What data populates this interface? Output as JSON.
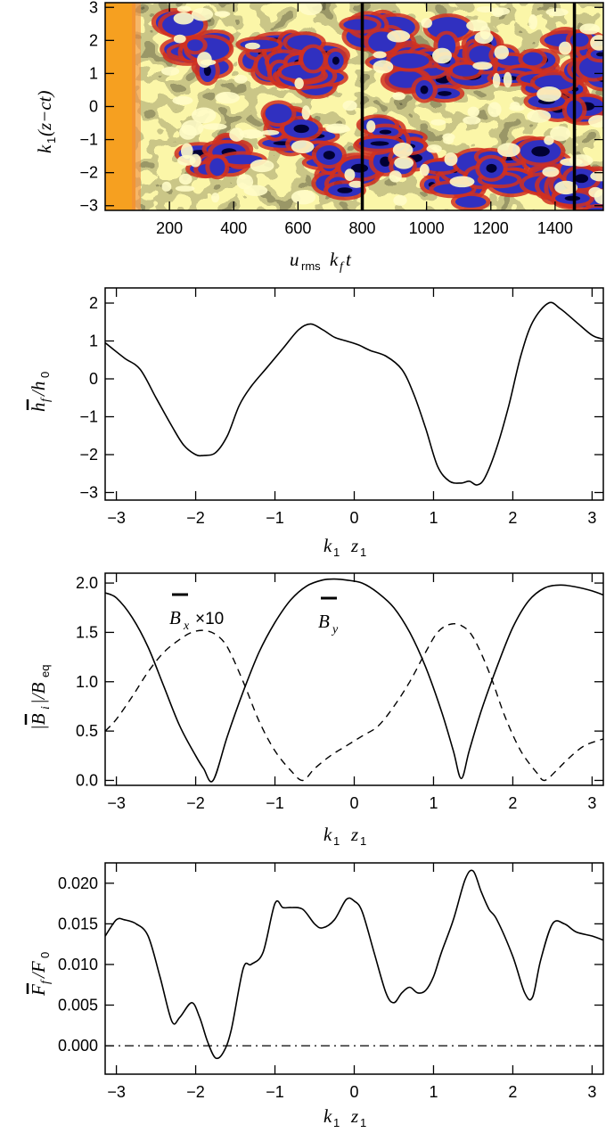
{
  "chart_data": [
    {
      "type": "heatmap",
      "xlabel": "u_rms k_f t",
      "ylabel": "k_1(z - ct)",
      "xlim": [
        0,
        1550
      ],
      "ylim": [
        -3.14159,
        3.14159
      ],
      "x_ticks": [
        200,
        400,
        600,
        800,
        1000,
        1200,
        1400
      ],
      "y_ticks": [
        -3,
        -2,
        -1,
        0,
        1,
        2,
        3
      ],
      "vertical_lines_x": [
        800,
        1460
      ],
      "colors": {
        "low": "#000033",
        "mid_low": "#3030c0",
        "mid": "#d03020",
        "mid_high": "#f0e060",
        "high": "#fffcc8",
        "early": "#f6a020"
      },
      "grid": false
    },
    {
      "type": "line",
      "xlabel": "k_1 z_1",
      "ylabel": "h_f/h_0",
      "xlim": [
        -3.14159,
        3.14159
      ],
      "ylim": [
        -3.2,
        2.4
      ],
      "x_ticks": [
        -3,
        -2,
        -1,
        0,
        1,
        2,
        3
      ],
      "y_ticks": [
        -3,
        -2,
        -1,
        0,
        1,
        2
      ],
      "series": [
        {
          "x": [
            -3.14,
            -2.9,
            -2.7,
            -2.5,
            -2.3,
            -2.15,
            -2.0,
            -1.9,
            -1.75,
            -1.6,
            -1.45,
            -1.3,
            -1.1,
            -0.9,
            -0.7,
            -0.55,
            -0.4,
            -0.25,
            -0.1,
            0.05,
            0.2,
            0.4,
            0.6,
            0.75,
            0.9,
            1.05,
            1.2,
            1.35,
            1.45,
            1.55,
            1.65,
            1.8,
            1.95,
            2.1,
            2.25,
            2.45,
            2.6,
            2.8,
            3.0,
            3.14
          ],
          "y": [
            0.95,
            0.55,
            0.25,
            -0.5,
            -1.25,
            -1.75,
            -2.0,
            -2.02,
            -1.95,
            -1.5,
            -0.7,
            -0.2,
            0.3,
            0.8,
            1.3,
            1.45,
            1.3,
            1.1,
            1.0,
            0.9,
            0.75,
            0.6,
            0.25,
            -0.4,
            -1.3,
            -2.3,
            -2.7,
            -2.75,
            -2.7,
            -2.8,
            -2.6,
            -1.8,
            -0.7,
            0.6,
            1.5,
            2.0,
            1.85,
            1.5,
            1.15,
            1.05
          ]
        }
      ],
      "grid": false
    },
    {
      "type": "line",
      "xlabel": "k_1 z_1",
      "ylabel": "|B_i|/B_eq",
      "xlim": [
        -3.14159,
        3.14159
      ],
      "ylim": [
        -0.05,
        2.1
      ],
      "x_ticks": [
        -3,
        -2,
        -1,
        0,
        1,
        2,
        3
      ],
      "y_ticks": [
        0.0,
        0.5,
        1.0,
        1.5,
        2.0
      ],
      "y_tick_labels": [
        "0.0",
        "0.5",
        "1.0",
        "1.5",
        "2.0"
      ],
      "annotations": [
        "B_x×10",
        "B_y"
      ],
      "series": [
        {
          "name": "B_y",
          "style": "solid",
          "x": [
            -3.14,
            -3.0,
            -2.8,
            -2.6,
            -2.4,
            -2.2,
            -2.0,
            -1.9,
            -1.78,
            -1.6,
            -1.4,
            -1.2,
            -1.0,
            -0.8,
            -0.6,
            -0.4,
            -0.25,
            -0.1,
            0.1,
            0.3,
            0.5,
            0.7,
            0.9,
            1.1,
            1.25,
            1.35,
            1.45,
            1.6,
            1.8,
            2.0,
            2.2,
            2.4,
            2.6,
            2.8,
            3.0,
            3.14
          ],
          "y": [
            1.9,
            1.85,
            1.65,
            1.35,
            0.95,
            0.55,
            0.25,
            0.12,
            0.0,
            0.45,
            0.9,
            1.3,
            1.6,
            1.83,
            1.97,
            2.03,
            2.04,
            2.03,
            2.0,
            1.9,
            1.75,
            1.5,
            1.15,
            0.7,
            0.3,
            0.02,
            0.3,
            0.7,
            1.15,
            1.55,
            1.82,
            1.95,
            1.98,
            1.96,
            1.92,
            1.88
          ]
        },
        {
          "name": "B_x×10",
          "style": "dashed",
          "x": [
            -3.14,
            -3.0,
            -2.8,
            -2.6,
            -2.4,
            -2.2,
            -2.05,
            -1.9,
            -1.75,
            -1.6,
            -1.4,
            -1.2,
            -1.0,
            -0.8,
            -0.65,
            -0.5,
            -0.3,
            -0.1,
            0.1,
            0.3,
            0.5,
            0.7,
            0.9,
            1.05,
            1.2,
            1.35,
            1.5,
            1.7,
            1.9,
            2.1,
            2.3,
            2.4,
            2.55,
            2.7,
            2.9,
            3.14
          ],
          "y": [
            0.5,
            0.62,
            0.85,
            1.1,
            1.3,
            1.43,
            1.5,
            1.52,
            1.48,
            1.35,
            1.0,
            0.6,
            0.3,
            0.1,
            0.0,
            0.12,
            0.25,
            0.35,
            0.45,
            0.55,
            0.75,
            1.0,
            1.3,
            1.5,
            1.58,
            1.57,
            1.45,
            1.1,
            0.65,
            0.3,
            0.08,
            0.0,
            0.1,
            0.22,
            0.35,
            0.42
          ]
        }
      ],
      "grid": false
    },
    {
      "type": "line",
      "xlabel": "k_1 z_1",
      "ylabel": "F_f/F_0",
      "xlim": [
        -3.14159,
        3.14159
      ],
      "ylim": [
        -0.0035,
        0.0225
      ],
      "x_ticks": [
        -3,
        -2,
        -1,
        0,
        1,
        2,
        3
      ],
      "y_ticks": [
        0.0,
        0.005,
        0.01,
        0.015,
        0.02
      ],
      "y_tick_labels": [
        "0.000",
        "0.005",
        "0.010",
        "0.015",
        "0.020"
      ],
      "series": [
        {
          "name": "F_f",
          "style": "solid",
          "x": [
            -3.14,
            -3.0,
            -2.9,
            -2.75,
            -2.6,
            -2.45,
            -2.3,
            -2.2,
            -2.05,
            -1.95,
            -1.85,
            -1.75,
            -1.65,
            -1.55,
            -1.4,
            -1.3,
            -1.15,
            -1.0,
            -0.9,
            -0.8,
            -0.65,
            -0.5,
            -0.4,
            -0.25,
            -0.1,
            0.0,
            0.1,
            0.25,
            0.4,
            0.5,
            0.6,
            0.7,
            0.8,
            0.9,
            1.0,
            1.1,
            1.25,
            1.4,
            1.5,
            1.6,
            1.7,
            1.8,
            2.0,
            2.15,
            2.25,
            2.35,
            2.5,
            2.65,
            2.8,
            3.0,
            3.14
          ],
          "y": [
            0.0135,
            0.0155,
            0.0155,
            0.015,
            0.0135,
            0.0085,
            0.003,
            0.0035,
            0.0053,
            0.0035,
            0.0005,
            -0.0015,
            -0.0008,
            0.002,
            0.0095,
            0.01,
            0.0115,
            0.0175,
            0.017,
            0.017,
            0.0168,
            0.015,
            0.0145,
            0.0155,
            0.018,
            0.0178,
            0.0165,
            0.0115,
            0.0065,
            0.0053,
            0.0065,
            0.0072,
            0.0065,
            0.0068,
            0.0085,
            0.0115,
            0.0155,
            0.0205,
            0.0215,
            0.019,
            0.0168,
            0.0155,
            0.011,
            0.0065,
            0.006,
            0.0105,
            0.015,
            0.015,
            0.014,
            0.0135,
            0.013
          ]
        }
      ],
      "reference_line": {
        "y": 0.0,
        "style": "dash-dot"
      },
      "grid": false
    }
  ]
}
